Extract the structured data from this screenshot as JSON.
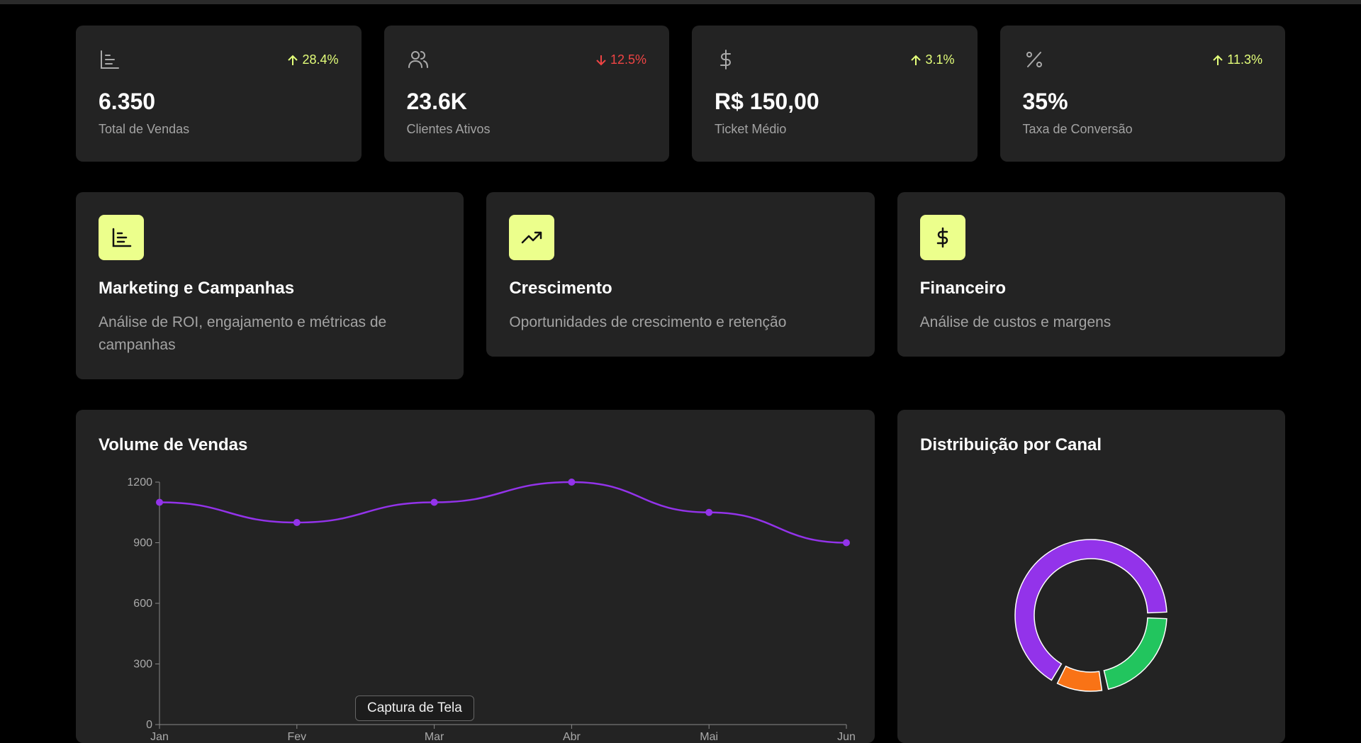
{
  "stats": [
    {
      "change": "28.4%",
      "direction": "up",
      "value": "6.350",
      "label": "Total de Vendas"
    },
    {
      "change": "12.5%",
      "direction": "down",
      "value": "23.6K",
      "label": "Clientes Ativos"
    },
    {
      "change": "3.1%",
      "direction": "up",
      "value": "R$ 150,00",
      "label": "Ticket Médio"
    },
    {
      "change": "11.3%",
      "direction": "up",
      "value": "35%",
      "label": "Taxa de Conversão"
    }
  ],
  "sections": [
    {
      "title": "Marketing e Campanhas",
      "description": "Análise de ROI, engajamento e métricas de campanhas"
    },
    {
      "title": "Crescimento",
      "description": "Oportunidades de crescimento e retenção"
    },
    {
      "title": "Financeiro",
      "description": "Análise de custos e margens"
    }
  ],
  "chart_data": [
    {
      "type": "line",
      "title": "Volume de Vendas",
      "categories": [
        "Jan",
        "Fev",
        "Mar",
        "Abr",
        "Mai",
        "Jun"
      ],
      "values": [
        1100,
        1000,
        1100,
        1200,
        1050,
        900
      ],
      "color": "#9333ea",
      "ylim": [
        0,
        1200
      ],
      "yticks": [
        0,
        300,
        600,
        900,
        1200
      ]
    },
    {
      "type": "pie",
      "title": "Distribuição por Canal",
      "values": [
        67,
        11,
        22
      ],
      "colors": [
        "#9333ea",
        "#f97316",
        "#22c55e"
      ]
    }
  ],
  "tooltip": "Captura de Tela"
}
